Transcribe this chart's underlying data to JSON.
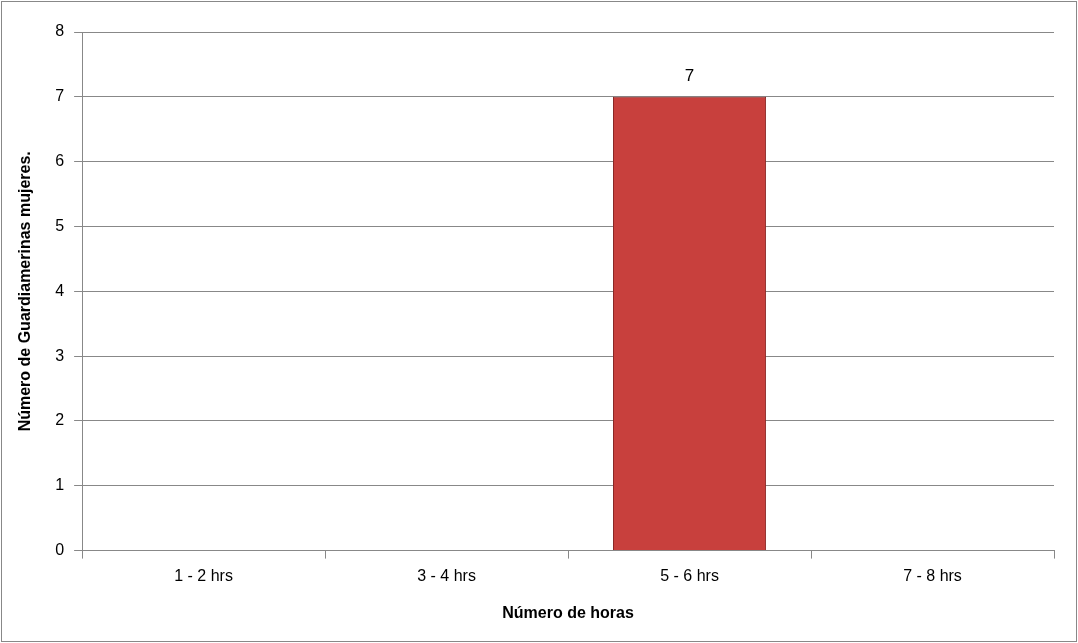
{
  "chart_data": {
    "type": "bar",
    "xlabel": "Número de horas",
    "ylabel": "Número de Guardiamerinas mujeres.",
    "categories": [
      "1 - 2 hrs",
      "3 - 4 hrs",
      "5 - 6 hrs",
      "7 - 8 hrs"
    ],
    "values": [
      0,
      0,
      7,
      0
    ],
    "color": "#c8403d",
    "value_labels": [
      null,
      null,
      "7",
      null
    ],
    "ylim": [
      0,
      8
    ],
    "yticks": [
      0,
      1,
      2,
      3,
      4,
      5,
      6,
      7,
      8
    ],
    "grid": "y",
    "legend": false
  }
}
